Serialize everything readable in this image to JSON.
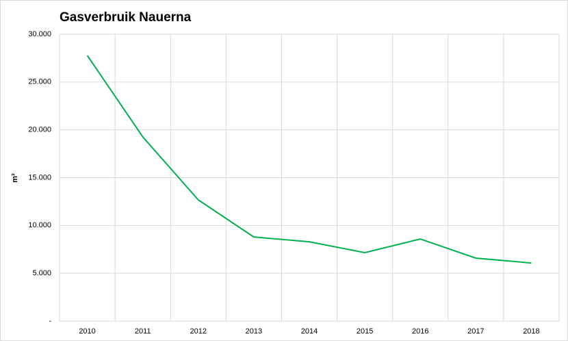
{
  "chart_data": {
    "type": "line",
    "title": "Gasverbruik Nauerna",
    "y_label": "m³",
    "categories": [
      "2010",
      "2011",
      "2012",
      "2013",
      "2014",
      "2015",
      "2016",
      "2017",
      "2018"
    ],
    "series": [
      {
        "color": "#00b050",
        "values": [
          27770,
          19260,
          12670,
          8800,
          8300,
          7160,
          8590,
          6590,
          6080
        ]
      }
    ],
    "ylim": [
      0,
      30000
    ],
    "yticks": [
      {
        "value": 0,
        "label": "-"
      },
      {
        "value": 5000,
        "label": "5.000"
      },
      {
        "value": 10000,
        "label": "10.000"
      },
      {
        "value": 15000,
        "label": "15.000"
      },
      {
        "value": 20000,
        "label": "20.000"
      },
      {
        "value": 25000,
        "label": "25.000"
      },
      {
        "value": 30000,
        "label": "30.000"
      }
    ],
    "grid": true
  }
}
